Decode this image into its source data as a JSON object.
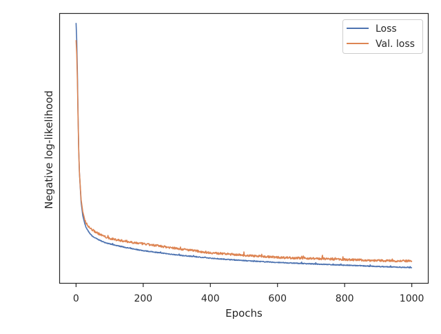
{
  "chart_data": {
    "type": "line",
    "title": "",
    "xlabel": "Epochs",
    "ylabel": "Negative log-likelihood",
    "xlim": [
      -48,
      1048
    ],
    "ylim": [
      0,
      1
    ],
    "x_ticks": [
      0,
      200,
      400,
      600,
      800,
      1000
    ],
    "y_ticks": [],
    "grid": false,
    "legend": {
      "placement": "top-right"
    },
    "series": [
      {
        "name": "Loss",
        "color": "#4c72b0",
        "noise": 0.0015,
        "points": [
          [
            0,
            0.966
          ],
          [
            2,
            0.9
          ],
          [
            4,
            0.78
          ],
          [
            6,
            0.62
          ],
          [
            8,
            0.49
          ],
          [
            10,
            0.41
          ],
          [
            15,
            0.3
          ],
          [
            20,
            0.25
          ],
          [
            25,
            0.225
          ],
          [
            30,
            0.205
          ],
          [
            40,
            0.185
          ],
          [
            50,
            0.172
          ],
          [
            60,
            0.165
          ],
          [
            80,
            0.153
          ],
          [
            100,
            0.145
          ],
          [
            150,
            0.131
          ],
          [
            200,
            0.12
          ],
          [
            250,
            0.112
          ],
          [
            300,
            0.104
          ],
          [
            350,
            0.098
          ],
          [
            400,
            0.092
          ],
          [
            500,
            0.083
          ],
          [
            600,
            0.076
          ],
          [
            700,
            0.071
          ],
          [
            800,
            0.066
          ],
          [
            900,
            0.061
          ],
          [
            1000,
            0.057
          ]
        ]
      },
      {
        "name": "Val. loss",
        "color": "#dd8452",
        "noise": 0.004,
        "points": [
          [
            0,
            0.902
          ],
          [
            2,
            0.85
          ],
          [
            4,
            0.75
          ],
          [
            6,
            0.61
          ],
          [
            8,
            0.49
          ],
          [
            10,
            0.41
          ],
          [
            15,
            0.31
          ],
          [
            20,
            0.265
          ],
          [
            25,
            0.24
          ],
          [
            30,
            0.222
          ],
          [
            40,
            0.205
          ],
          [
            50,
            0.196
          ],
          [
            60,
            0.188
          ],
          [
            80,
            0.175
          ],
          [
            100,
            0.165
          ],
          [
            150,
            0.154
          ],
          [
            200,
            0.145
          ],
          [
            250,
            0.137
          ],
          [
            300,
            0.128
          ],
          [
            350,
            0.12
          ],
          [
            400,
            0.112
          ],
          [
            500,
            0.103
          ],
          [
            600,
            0.095
          ],
          [
            700,
            0.091
          ],
          [
            800,
            0.087
          ],
          [
            900,
            0.083
          ],
          [
            1000,
            0.081
          ]
        ]
      }
    ]
  }
}
